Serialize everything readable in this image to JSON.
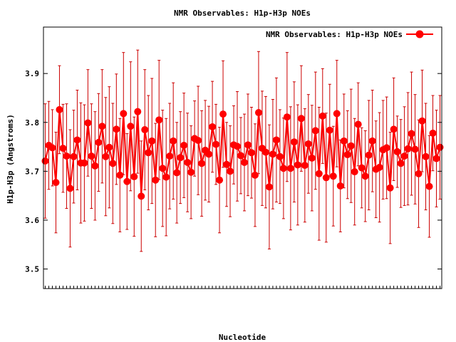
{
  "chart_data": {
    "type": "line",
    "title": "NMR Observables: H1p-H3p NOEs",
    "xlabel": "Nucleotide",
    "ylabel": "H1p-H3p (Angstroms)",
    "xlim": [
      0.5,
      112.5
    ],
    "ylim": [
      3.46,
      3.995
    ],
    "yticks": [
      3.5,
      3.6,
      3.7,
      3.8,
      3.9
    ],
    "grid": false,
    "legend_position": "top-right",
    "colors": {
      "series": "#ff0000",
      "errorbar": "#cc0000",
      "axis": "#000000"
    },
    "series": [
      {
        "name": "NMR Observables: H1p-H3p NOEs",
        "x": [
          1,
          2,
          3,
          4,
          5,
          6,
          7,
          8,
          9,
          10,
          11,
          12,
          13,
          14,
          15,
          16,
          17,
          18,
          19,
          20,
          21,
          22,
          23,
          24,
          25,
          26,
          27,
          28,
          29,
          30,
          31,
          32,
          33,
          34,
          35,
          36,
          37,
          38,
          39,
          40,
          41,
          42,
          43,
          44,
          45,
          46,
          47,
          48,
          49,
          50,
          51,
          52,
          53,
          54,
          55,
          56,
          57,
          58,
          59,
          60,
          61,
          62,
          63,
          64,
          65,
          66,
          67,
          68,
          69,
          70,
          71,
          72,
          73,
          74,
          75,
          76,
          77,
          78,
          79,
          80,
          81,
          82,
          83,
          84,
          85,
          86,
          87,
          88,
          89,
          90,
          91,
          92,
          93,
          94,
          95,
          96,
          97,
          98,
          99,
          100,
          101,
          102,
          103,
          104,
          105,
          106,
          107,
          108,
          109,
          110,
          111,
          112
        ],
        "y": [
          3.721,
          3.753,
          3.748,
          3.677,
          3.826,
          3.747,
          3.731,
          3.665,
          3.73,
          3.764,
          3.717,
          3.717,
          3.799,
          3.731,
          3.711,
          3.759,
          3.792,
          3.73,
          3.749,
          3.716,
          3.786,
          3.692,
          3.818,
          3.679,
          3.792,
          3.689,
          3.822,
          3.649,
          3.785,
          3.738,
          3.762,
          3.682,
          3.805,
          3.706,
          3.688,
          3.731,
          3.762,
          3.697,
          3.728,
          3.753,
          3.718,
          3.698,
          3.767,
          3.763,
          3.716,
          3.743,
          3.735,
          3.791,
          3.755,
          3.682,
          3.817,
          3.714,
          3.7,
          3.754,
          3.751,
          3.732,
          3.718,
          3.754,
          3.738,
          3.692,
          3.82,
          3.747,
          3.739,
          3.668,
          3.735,
          3.764,
          3.73,
          3.706,
          3.811,
          3.706,
          3.76,
          3.713,
          3.808,
          3.712,
          3.756,
          3.727,
          3.783,
          3.695,
          3.813,
          3.687,
          3.784,
          3.69,
          3.818,
          3.67,
          3.762,
          3.734,
          3.752,
          3.699,
          3.796,
          3.707,
          3.69,
          3.733,
          3.762,
          3.704,
          3.708,
          3.744,
          3.748,
          3.666,
          3.786,
          3.74,
          3.716,
          3.731,
          3.746,
          3.777,
          3.745,
          3.695,
          3.803,
          3.73,
          3.669,
          3.778,
          3.726,
          3.749
        ],
        "err": [
          0.117,
          0.09,
          0.078,
          0.103,
          0.09,
          0.09,
          0.107,
          0.12,
          0.095,
          0.102,
          0.123,
          0.119,
          0.109,
          0.107,
          0.111,
          0.1,
          0.116,
          0.121,
          0.124,
          0.123,
          0.113,
          0.116,
          0.125,
          0.098,
          0.132,
          0.122,
          0.126,
          0.113,
          0.123,
          0.117,
          0.128,
          0.116,
          0.122,
          0.119,
          0.12,
          0.108,
          0.119,
          0.103,
          0.094,
          0.107,
          0.101,
          0.095,
          0.077,
          0.111,
          0.108,
          0.102,
          0.098,
          0.093,
          0.082,
          0.108,
          0.109,
          0.086,
          0.093,
          0.08,
          0.112,
          0.078,
          0.099,
          0.104,
          0.093,
          0.105,
          0.125,
          0.117,
          0.114,
          0.127,
          0.112,
          0.127,
          0.096,
          0.103,
          0.132,
          0.126,
          0.123,
          0.123,
          0.108,
          0.116,
          0.101,
          0.108,
          0.12,
          0.136,
          0.097,
          0.132,
          0.094,
          0.102,
          0.109,
          0.094,
          0.096,
          0.09,
          0.116,
          0.109,
          0.085,
          0.082,
          0.093,
          0.112,
          0.104,
          0.099,
          0.112,
          0.101,
          0.104,
          0.114,
          0.105,
          0.073,
          0.09,
          0.101,
          0.115,
          0.126,
          0.112,
          0.11,
          0.104,
          0.109,
          0.104,
          0.077,
          0.099,
          0.106
        ]
      }
    ]
  }
}
